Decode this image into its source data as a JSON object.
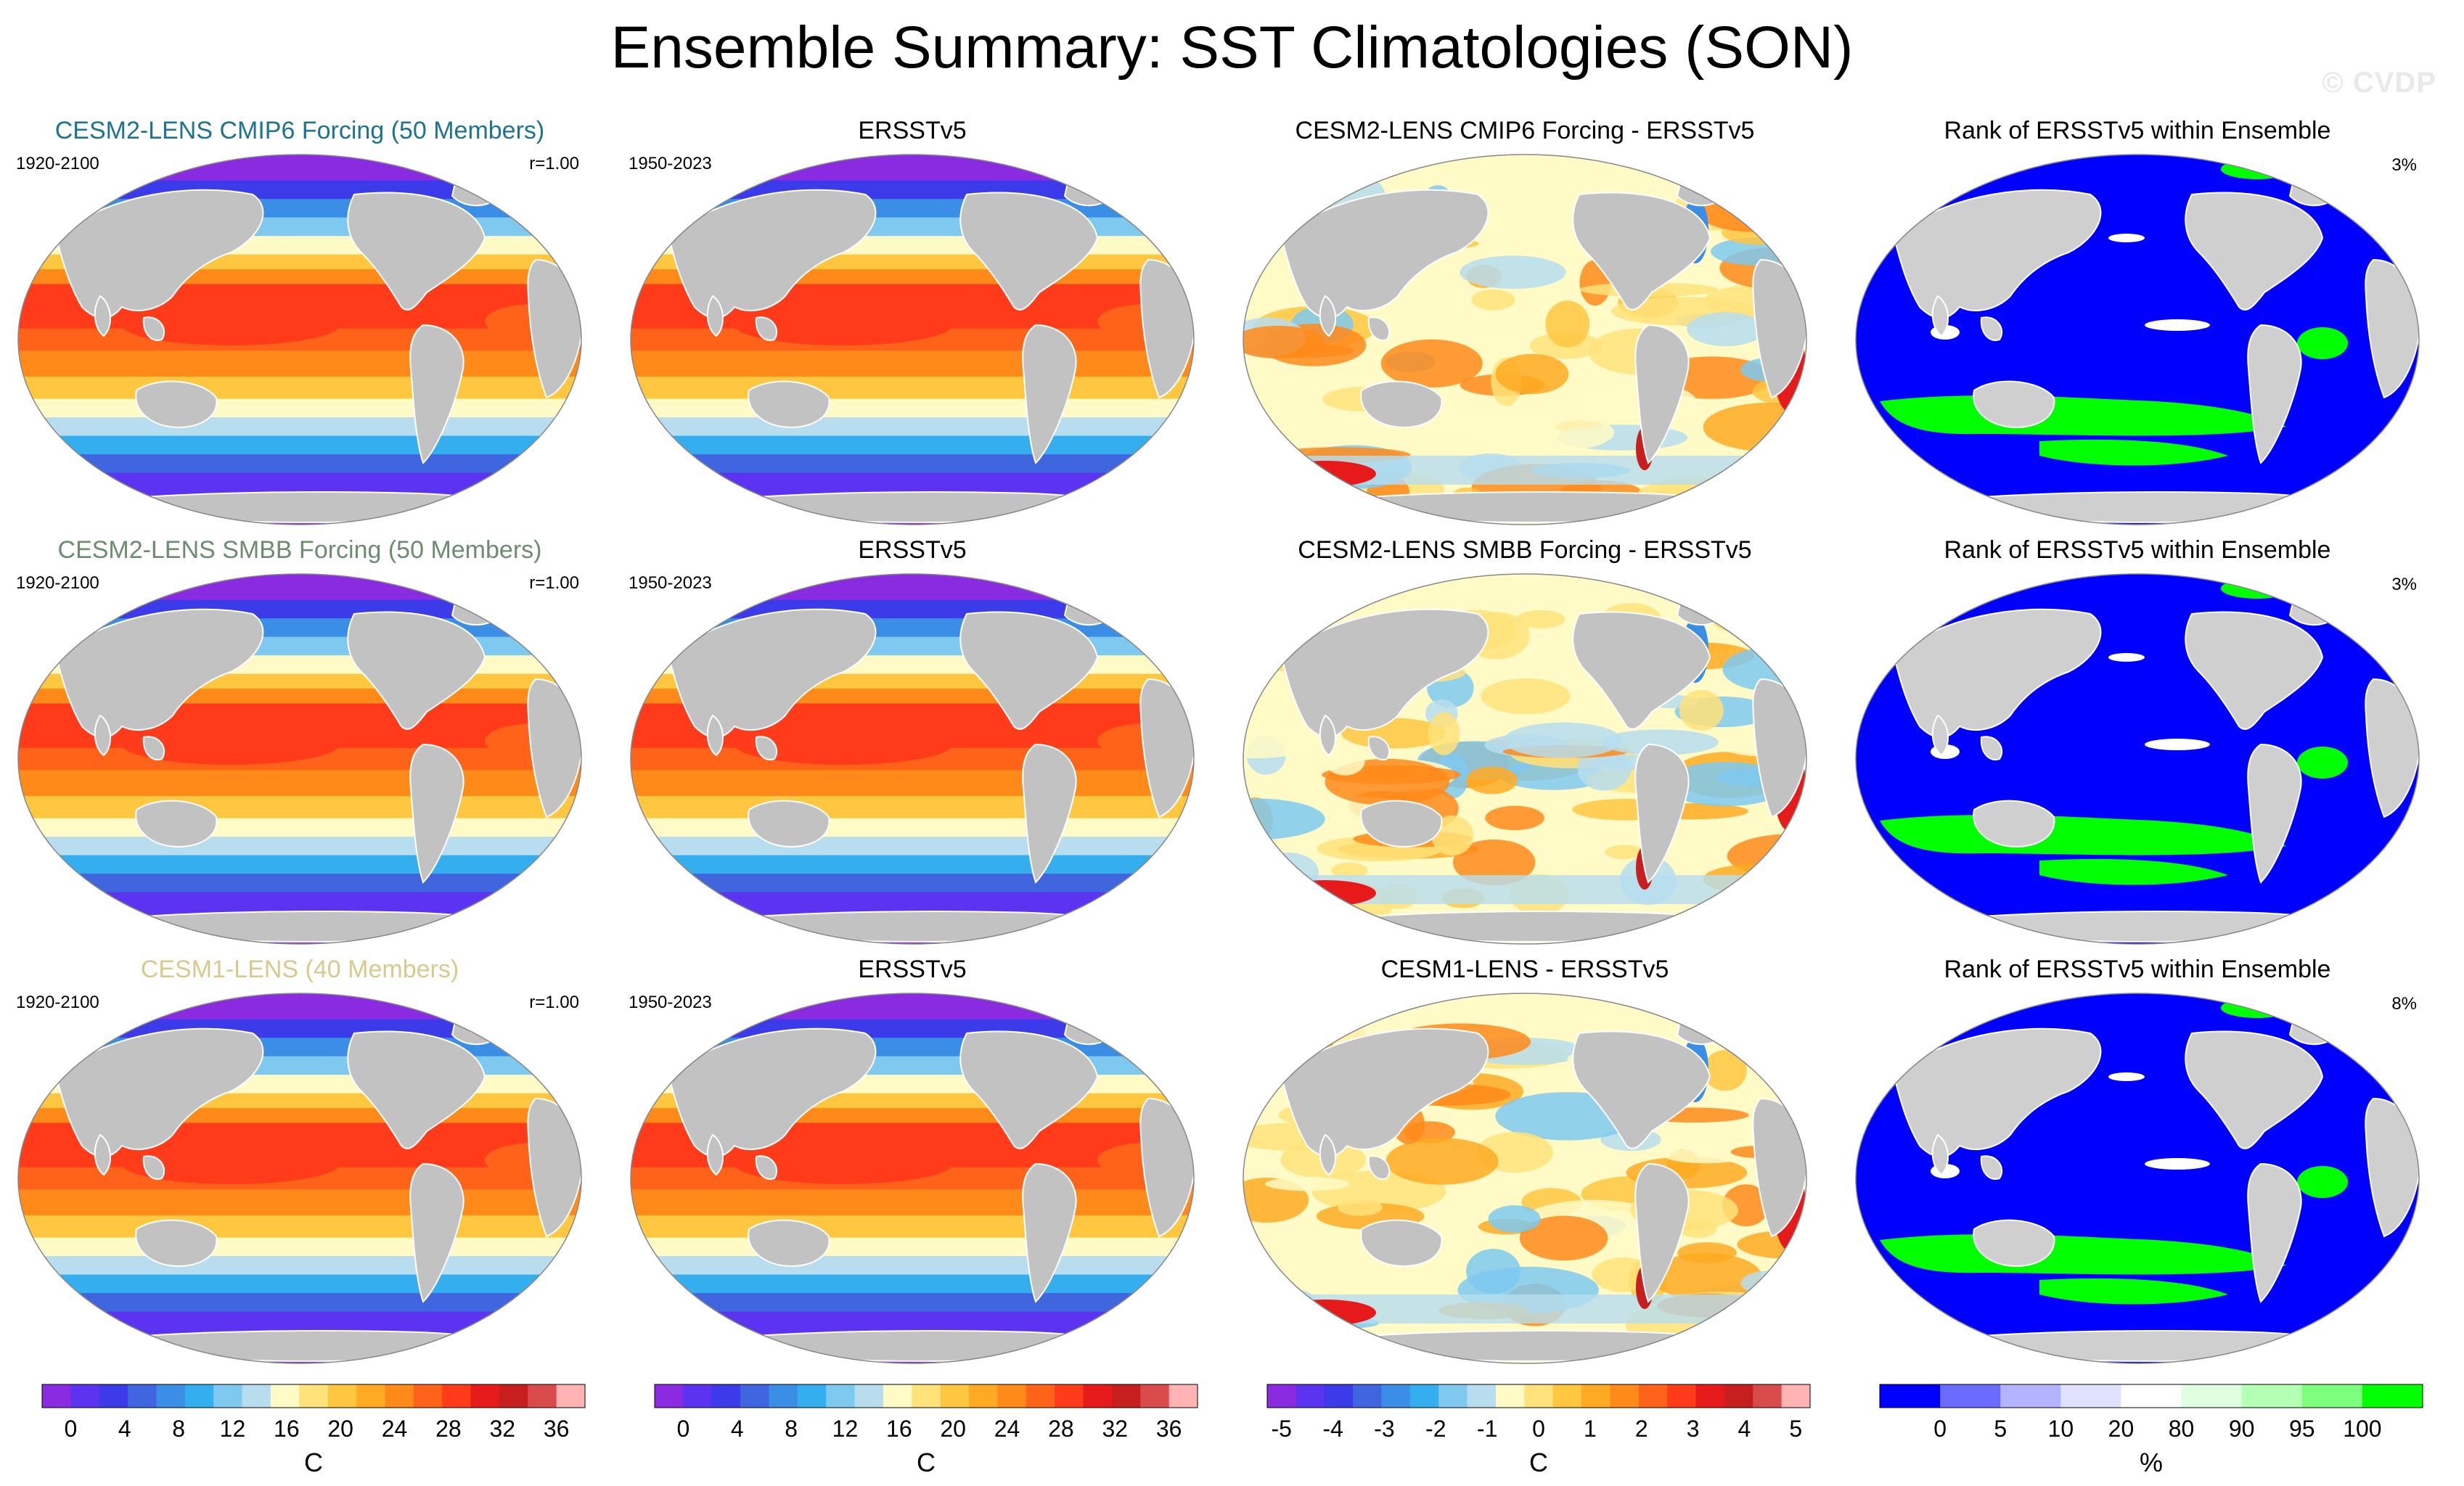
{
  "title": "Ensemble Summary: SST Climatologies (SON)",
  "watermark": "© CVDP",
  "rows": [
    {
      "model": {
        "title": "CESM2-LENS CMIP6 Forcing (50 Members)",
        "title_color": "#1d7390",
        "period": "1920-2100",
        "r": "r=1.00",
        "map": "sst-climatology-model-map"
      },
      "obs": {
        "title": "ERSSTv5",
        "period": "1950-2023",
        "map": "sst-climatology-obs-map"
      },
      "diff": {
        "title": "CESM2-LENS CMIP6 Forcing - ERSSTv5",
        "map": "sst-difference-map"
      },
      "rank": {
        "title": "Rank of ERSSTv5 within Ensemble",
        "pct": "3%",
        "map": "rank-map"
      }
    },
    {
      "model": {
        "title": "CESM2-LENS SMBB Forcing (50 Members)",
        "title_color": "#6c8c6e",
        "period": "1920-2100",
        "r": "r=1.00",
        "map": "sst-climatology-model-map"
      },
      "obs": {
        "title": "ERSSTv5",
        "period": "1950-2023",
        "map": "sst-climatology-obs-map"
      },
      "diff": {
        "title": "CESM2-LENS SMBB Forcing - ERSSTv5",
        "map": "sst-difference-map"
      },
      "rank": {
        "title": "Rank of ERSSTv5 within Ensemble",
        "pct": "3%",
        "map": "rank-map"
      }
    },
    {
      "model": {
        "title": "CESM1-LENS (40 Members)",
        "title_color": "#d8c98c",
        "period": "1920-2100",
        "r": "r=1.00",
        "map": "sst-climatology-model-map"
      },
      "obs": {
        "title": "ERSSTv5",
        "period": "1950-2023",
        "map": "sst-climatology-obs-map"
      },
      "diff": {
        "title": "CESM1-LENS - ERSSTv5",
        "map": "sst-difference-map"
      },
      "rank": {
        "title": "Rank of ERSSTv5 within Ensemble",
        "pct": "8%",
        "map": "rank-map"
      }
    }
  ],
  "colorbars": [
    {
      "name": "sst-colorbar",
      "colors": [
        "#8a2be2",
        "#5b33f0",
        "#3b3bea",
        "#3f66de",
        "#3a8ee6",
        "#35aef0",
        "#7ec9f0",
        "#b7ddef",
        "#fffac6",
        "#ffe27a",
        "#ffc63f",
        "#ffaa22",
        "#ff8a1a",
        "#ff631a",
        "#ff3b1a",
        "#e61a1a",
        "#c71e1e",
        "#d94a4a",
        "#ffb3b3"
      ],
      "ticks": [
        "0",
        "4",
        "8",
        "12",
        "16",
        "20",
        "24",
        "28",
        "32",
        "36"
      ],
      "unit": "C"
    },
    {
      "name": "sst-colorbar",
      "colors": [
        "#8a2be2",
        "#5b33f0",
        "#3b3bea",
        "#3f66de",
        "#3a8ee6",
        "#35aef0",
        "#7ec9f0",
        "#b7ddef",
        "#fffac6",
        "#ffe27a",
        "#ffc63f",
        "#ffaa22",
        "#ff8a1a",
        "#ff631a",
        "#ff3b1a",
        "#e61a1a",
        "#c71e1e",
        "#d94a4a",
        "#ffb3b3"
      ],
      "ticks": [
        "0",
        "4",
        "8",
        "12",
        "16",
        "20",
        "24",
        "28",
        "32",
        "36"
      ],
      "unit": "C"
    },
    {
      "name": "difference-colorbar",
      "colors": [
        "#8a2be2",
        "#5b33f0",
        "#3b3bea",
        "#3f66de",
        "#3a8ee6",
        "#35aef0",
        "#7ec9f0",
        "#b7ddef",
        "#fffac6",
        "#ffe27a",
        "#ffc63f",
        "#ffaa22",
        "#ff8a1a",
        "#ff631a",
        "#ff3b1a",
        "#e61a1a",
        "#c71e1e",
        "#d94a4a",
        "#ffb3b3"
      ],
      "ticks": [
        "-5",
        "-4",
        "-3",
        "-2",
        "-1",
        "0",
        "1",
        "2",
        "3",
        "4",
        "5"
      ],
      "unit": "C"
    },
    {
      "name": "rank-colorbar",
      "colors": [
        "#0000ff",
        "#6b6bff",
        "#b3b3ff",
        "#e0e0ff",
        "#ffffff",
        "#e0ffe0",
        "#b3ffb3",
        "#7dff7d",
        "#00ff00"
      ],
      "ticks": [
        "0",
        "5",
        "10",
        "20",
        "80",
        "90",
        "95",
        "100"
      ],
      "unit": "%"
    }
  ],
  "palette": {
    "land": "#c2c2c2",
    "sst": [
      "#8a2be2",
      "#5b33f0",
      "#3b3bea",
      "#3f66de",
      "#3a8ee6",
      "#35aef0",
      "#7ec9f0",
      "#b7ddef",
      "#fffac6",
      "#ffe27a",
      "#ffc63f",
      "#ffaa22",
      "#ff8a1a",
      "#ff631a",
      "#ff3b1a"
    ],
    "diff_land": "#c2c2c2",
    "rank_low": "#0000ff",
    "rank_high": "#00ff00"
  }
}
